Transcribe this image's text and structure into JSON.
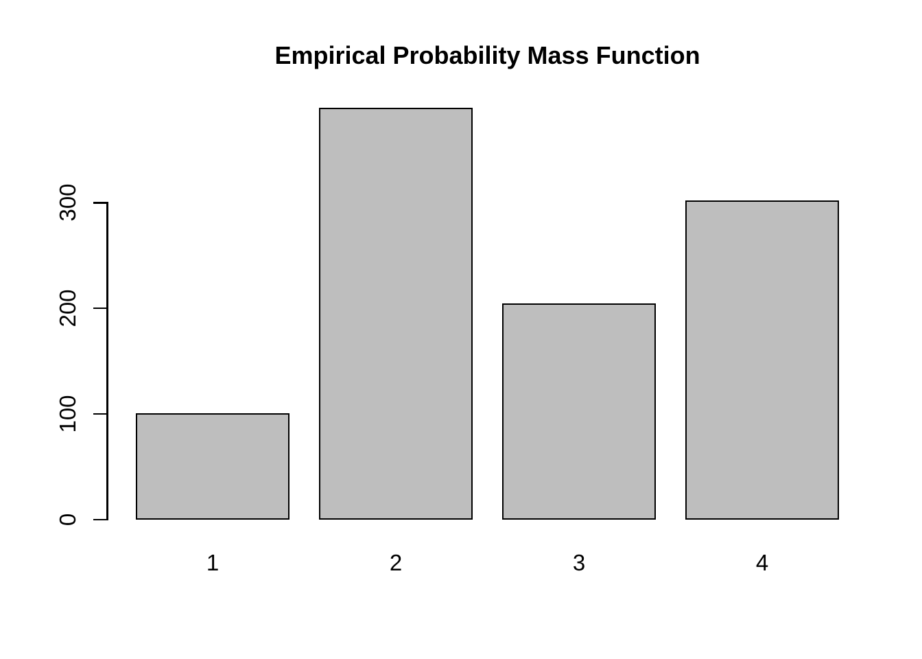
{
  "page": {
    "background_color": "#ffffff",
    "text_color": "#000000"
  },
  "chart_data": {
    "type": "bar",
    "title": "Empirical Probability Mass Function",
    "categories": [
      "1",
      "2",
      "3",
      "4"
    ],
    "values": [
      101,
      390,
      205,
      302
    ],
    "xlabel": "",
    "ylabel": "",
    "yticks": [
      0,
      100,
      200,
      300
    ],
    "ylim": [
      0,
      392
    ],
    "grid": false,
    "legend_position": "none",
    "bar_fill_color": "#bebebe",
    "bar_border_color": "#000000",
    "axis_color": "#000000",
    "style": "R base graphics barplot: y tick labels rotated 90 degrees, axis line only on left spanning 0-300, no x-axis line, bars sit on value-0 baseline"
  }
}
